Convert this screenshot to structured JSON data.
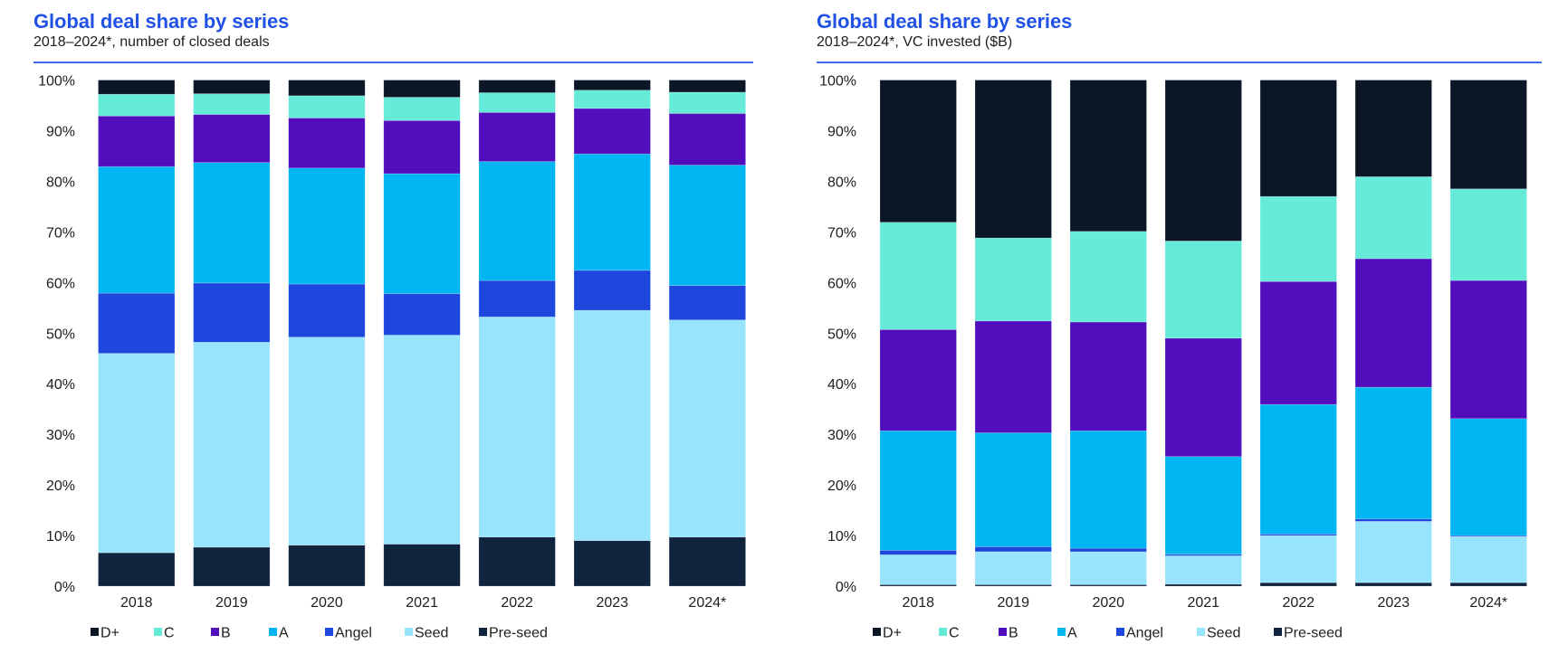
{
  "colors": {
    "D+": "#0b1727",
    "C": "#66ebd9",
    "B": "#520ebd",
    "A": "#00b6f2",
    "Angel": "#1e47de",
    "Seed": "#97e4fc",
    "Pre-seed": "#11243d"
  },
  "chart_data": [
    {
      "type": "bar",
      "stacked": true,
      "title": "Global deal share by series",
      "subtitle": "2018–2024*, number of closed deals",
      "xlabel": "",
      "ylabel": "",
      "categories": [
        "2018",
        "2019",
        "2020",
        "2021",
        "2022",
        "2023",
        "2024*"
      ],
      "ylim": [
        0,
        100
      ],
      "yticks": [
        "0%",
        "10%",
        "20%",
        "30%",
        "40%",
        "50%",
        "60%",
        "70%",
        "80%",
        "90%",
        "100%"
      ],
      "grid": false,
      "legend_position": "bottom",
      "legend": [
        "D+",
        "C",
        "B",
        "A",
        "Angel",
        "Seed",
        "Pre-seed"
      ],
      "series": [
        {
          "name": "Pre-seed",
          "values": [
            6.6,
            7.7,
            8.1,
            8.3,
            9.7,
            9.0,
            9.7
          ]
        },
        {
          "name": "Seed",
          "values": [
            39.4,
            40.5,
            41.1,
            41.3,
            43.5,
            45.5,
            42.9
          ]
        },
        {
          "name": "Angel",
          "values": [
            11.9,
            11.7,
            10.5,
            8.2,
            7.2,
            7.9,
            6.8
          ]
        },
        {
          "name": "A",
          "values": [
            25.0,
            23.8,
            22.9,
            23.7,
            23.5,
            23.0,
            23.8
          ]
        },
        {
          "name": "B",
          "values": [
            10.0,
            9.5,
            9.9,
            10.5,
            9.7,
            9.0,
            10.2
          ]
        },
        {
          "name": "C",
          "values": [
            4.3,
            4.1,
            4.4,
            4.6,
            3.9,
            3.6,
            4.2
          ]
        },
        {
          "name": "D+",
          "values": [
            2.8,
            2.7,
            3.1,
            3.4,
            2.5,
            2.0,
            2.4
          ]
        }
      ]
    },
    {
      "type": "bar",
      "stacked": true,
      "title": "Global deal share by series",
      "subtitle": "2018–2024*, VC invested ($B)",
      "xlabel": "",
      "ylabel": "",
      "categories": [
        "2018",
        "2019",
        "2020",
        "2021",
        "2022",
        "2023",
        "2024*"
      ],
      "ylim": [
        0,
        100
      ],
      "yticks": [
        "0%",
        "10%",
        "20%",
        "30%",
        "40%",
        "50%",
        "60%",
        "70%",
        "80%",
        "90%",
        "100%"
      ],
      "grid": false,
      "legend_position": "bottom",
      "legend": [
        "D+",
        "C",
        "B",
        "A",
        "Angel",
        "Seed",
        "Pre-seed"
      ],
      "series": [
        {
          "name": "Pre-seed",
          "values": [
            0.3,
            0.3,
            0.3,
            0.4,
            0.7,
            0.7,
            0.7
          ]
        },
        {
          "name": "Seed",
          "values": [
            5.9,
            6.5,
            6.5,
            5.6,
            9.3,
            12.1,
            9.1
          ]
        },
        {
          "name": "Angel",
          "values": [
            0.9,
            1.0,
            0.7,
            0.3,
            0.3,
            0.5,
            0.2
          ]
        },
        {
          "name": "A",
          "values": [
            23.6,
            22.5,
            23.2,
            19.3,
            25.6,
            26.0,
            23.1
          ]
        },
        {
          "name": "B",
          "values": [
            20.0,
            22.1,
            21.5,
            23.4,
            24.3,
            25.4,
            27.3
          ]
        },
        {
          "name": "C",
          "values": [
            21.2,
            16.4,
            17.9,
            19.2,
            16.8,
            16.2,
            18.1
          ]
        },
        {
          "name": "D+",
          "values": [
            28.1,
            31.2,
            29.9,
            31.8,
            23.0,
            19.1,
            21.5
          ]
        }
      ]
    }
  ]
}
